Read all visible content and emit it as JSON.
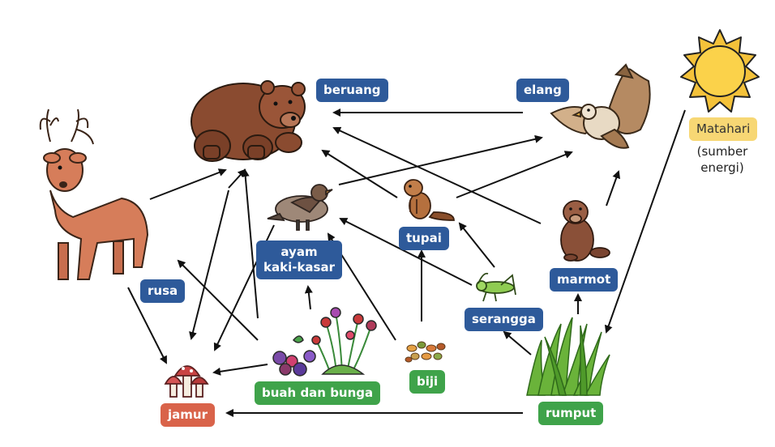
{
  "labels": {
    "beruang": "beruang",
    "elang": "elang",
    "rusa": "rusa",
    "ayam": "ayam\nkaki-kasar",
    "tupai": "tupai",
    "marmot": "marmot",
    "serangga": "serangga",
    "jamur": "jamur",
    "buah": "buah dan bunga",
    "biji": "biji",
    "rumput": "rumput",
    "matahari": "Matahari",
    "matahari_note": "(sumber\nenergi)"
  },
  "colors": {
    "consumer": "#2e5a9a",
    "producer": "#3fa34a",
    "decomposer": "#d9634a",
    "sun": "#f7d774"
  },
  "icons": [
    "bear-icon",
    "eagle-icon",
    "deer-icon",
    "grouse-icon",
    "chipmunk-icon",
    "marmot-icon",
    "grasshopper-icon",
    "mushroom-icon",
    "flowers-icon",
    "seeds-icon",
    "grass-icon",
    "sun-icon"
  ]
}
